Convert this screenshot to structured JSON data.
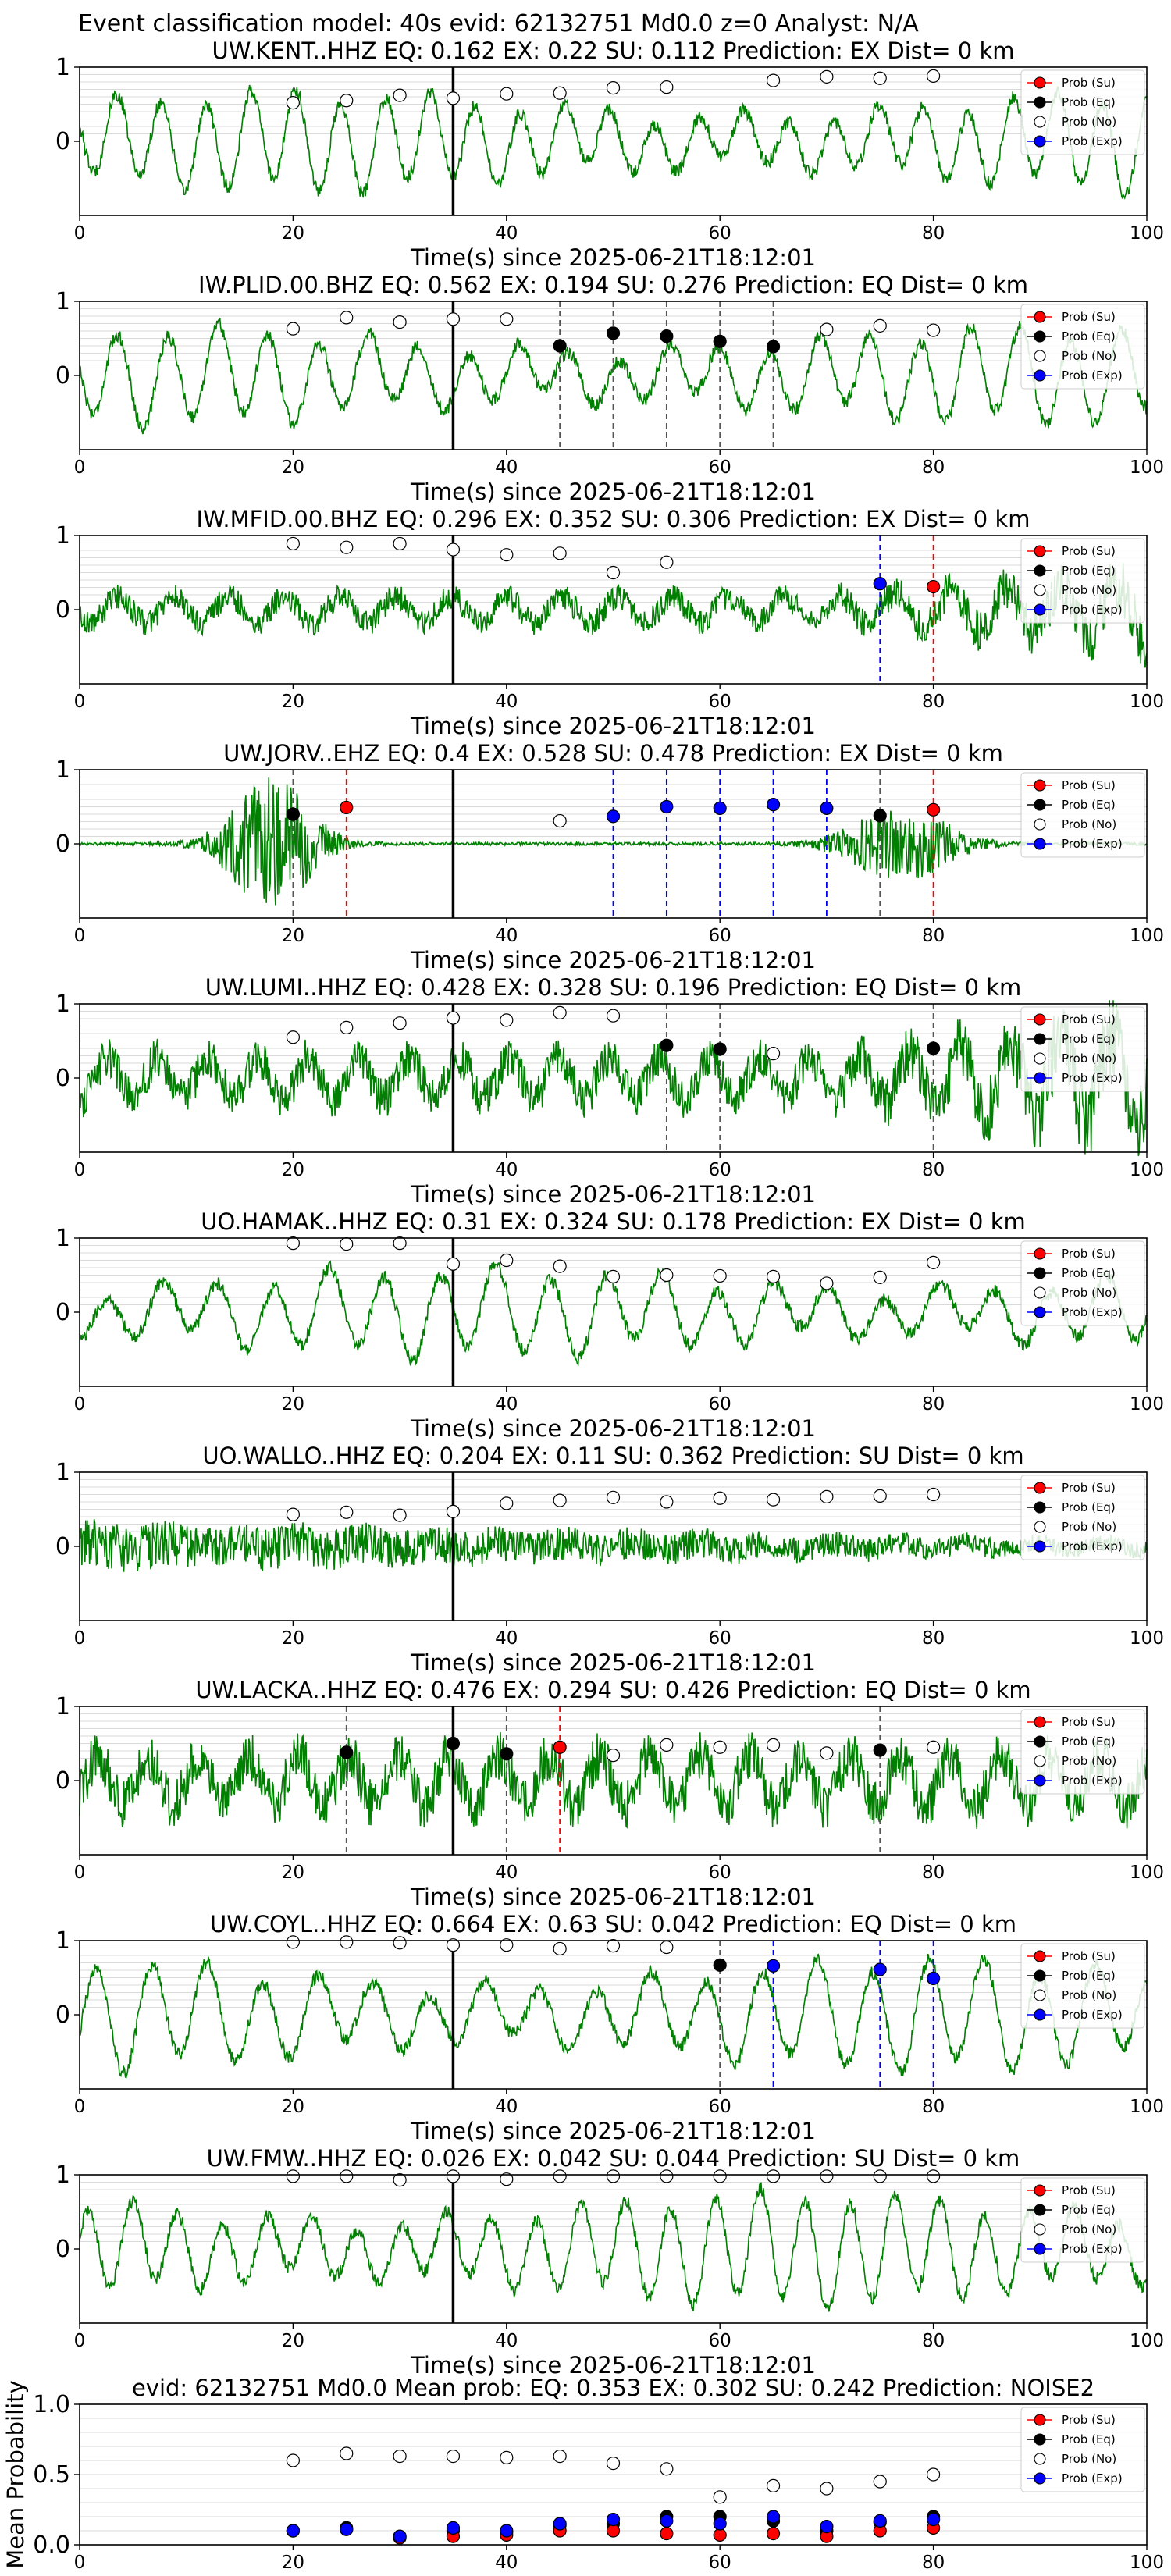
{
  "suptitle": "Event classification model: 40s evid: 62132751 Md0.0 z=0 Analyst: N/A",
  "legend": [
    "Prob (Su)",
    "Prob (Eq)",
    "Prob (No)",
    "Prob (Exp)"
  ],
  "colors": {
    "su": "#ff0000",
    "eq": "#000000",
    "no": "#ffffff",
    "exp": "#0000ff",
    "trace": "#008000",
    "pick": "#000000"
  },
  "xlabel": "Time(s) since 2025-06-21T18:12:01",
  "chart_data": [
    {
      "type": "line",
      "title": "UW.KENT..HHZ   EQ: 0.162  EX: 0.22  SU: 0.112   Prediction: EX    Dist= 0 km",
      "xlim": [
        0,
        100
      ],
      "ylim": [
        -1,
        1
      ],
      "yticks": [
        0,
        1
      ],
      "xticks": [
        0,
        20,
        40,
        60,
        80,
        100
      ],
      "pick_time": 35,
      "trace": {
        "style": "wave",
        "amp": 0.62
      },
      "markers": {
        "no": [
          [
            20,
            0.52
          ],
          [
            25,
            0.55
          ],
          [
            30,
            0.62
          ],
          [
            35,
            0.58
          ],
          [
            40,
            0.64
          ],
          [
            45,
            0.65
          ],
          [
            50,
            0.72
          ],
          [
            55,
            0.73
          ],
          [
            65,
            0.82
          ],
          [
            70,
            0.87
          ],
          [
            75,
            0.85
          ],
          [
            80,
            0.88
          ]
        ],
        "eq": [],
        "su": [],
        "exp": []
      },
      "vlines": []
    },
    {
      "type": "line",
      "title": "IW.PLID.00.BHZ   EQ: 0.562  EX: 0.194  SU: 0.276   Prediction: EQ    Dist= 0 km",
      "xlim": [
        0,
        100
      ],
      "ylim": [
        -1,
        1
      ],
      "yticks": [
        0,
        1
      ],
      "xticks": [
        0,
        20,
        40,
        60,
        80,
        100
      ],
      "pick_time": 35,
      "trace": {
        "style": "wave",
        "amp": 0.6
      },
      "markers": {
        "no": [
          [
            20,
            0.63
          ],
          [
            25,
            0.78
          ],
          [
            30,
            0.72
          ],
          [
            35,
            0.76
          ],
          [
            40,
            0.76
          ],
          [
            70,
            0.62
          ],
          [
            75,
            0.67
          ],
          [
            80,
            0.61
          ]
        ],
        "eq": [
          [
            45,
            0.4
          ],
          [
            50,
            0.57
          ],
          [
            55,
            0.53
          ],
          [
            60,
            0.46
          ],
          [
            65,
            0.39
          ]
        ],
        "su": [],
        "exp": []
      },
      "vlines": [
        [
          45,
          "eq"
        ],
        [
          50,
          "eq"
        ],
        [
          55,
          "eq"
        ],
        [
          60,
          "eq"
        ],
        [
          65,
          "eq"
        ]
      ]
    },
    {
      "type": "line",
      "title": "IW.MFID.00.BHZ   EQ: 0.296  EX: 0.352  SU: 0.306   Prediction: EX    Dist= 0 km",
      "xlim": [
        0,
        100
      ],
      "ylim": [
        -1,
        1
      ],
      "yticks": [
        0,
        1
      ],
      "xticks": [
        0,
        20,
        40,
        60,
        80,
        100
      ],
      "pick_time": 35,
      "trace": {
        "style": "noisy",
        "amp": 0.45
      },
      "markers": {
        "no": [
          [
            20,
            0.89
          ],
          [
            25,
            0.84
          ],
          [
            30,
            0.89
          ],
          [
            35,
            0.81
          ],
          [
            40,
            0.74
          ],
          [
            45,
            0.76
          ],
          [
            50,
            0.5
          ],
          [
            55,
            0.64
          ]
        ],
        "eq": [],
        "su": [
          [
            80,
            0.31
          ]
        ],
        "exp": [
          [
            75,
            0.35
          ]
        ]
      },
      "vlines": [
        [
          75,
          "exp"
        ],
        [
          80,
          "su"
        ]
      ]
    },
    {
      "type": "line",
      "title": "UW.JORV..EHZ   EQ: 0.4  EX: 0.528  SU: 0.478   Prediction: EX    Dist= 0 km",
      "xlim": [
        0,
        100
      ],
      "ylim": [
        -1,
        1
      ],
      "yticks": [
        0,
        1
      ],
      "xticks": [
        0,
        20,
        40,
        60,
        80,
        100
      ],
      "pick_time": 35,
      "trace": {
        "style": "bursts",
        "amp": 0.9
      },
      "markers": {
        "no": [
          [
            45,
            0.31
          ]
        ],
        "eq": [
          [
            20,
            0.4
          ],
          [
            75,
            0.38
          ]
        ],
        "su": [
          [
            25,
            0.49
          ],
          [
            80,
            0.46
          ]
        ],
        "exp": [
          [
            50,
            0.37
          ],
          [
            55,
            0.5
          ],
          [
            60,
            0.48
          ],
          [
            65,
            0.53
          ],
          [
            70,
            0.48
          ]
        ]
      },
      "vlines": [
        [
          20,
          "eq"
        ],
        [
          25,
          "su"
        ],
        [
          50,
          "exp"
        ],
        [
          55,
          "exp"
        ],
        [
          60,
          "exp"
        ],
        [
          65,
          "exp"
        ],
        [
          70,
          "exp"
        ],
        [
          75,
          "eq"
        ],
        [
          80,
          "su"
        ]
      ]
    },
    {
      "type": "line",
      "title": "UW.LUMI..HHZ   EQ: 0.428  EX: 0.328  SU: 0.196   Prediction: EQ    Dist= 0 km",
      "xlim": [
        0,
        100
      ],
      "ylim": [
        -1,
        1
      ],
      "yticks": [
        0,
        1
      ],
      "xticks": [
        0,
        20,
        40,
        60,
        80,
        100
      ],
      "pick_time": 35,
      "trace": {
        "style": "noisy",
        "amp": 0.7
      },
      "markers": {
        "no": [
          [
            20,
            0.55
          ],
          [
            25,
            0.68
          ],
          [
            30,
            0.74
          ],
          [
            35,
            0.81
          ],
          [
            40,
            0.78
          ],
          [
            45,
            0.88
          ],
          [
            50,
            0.84
          ],
          [
            65,
            0.33
          ]
        ],
        "eq": [
          [
            55,
            0.44
          ],
          [
            60,
            0.39
          ],
          [
            80,
            0.4
          ]
        ],
        "su": [],
        "exp": []
      },
      "vlines": [
        [
          55,
          "eq"
        ],
        [
          60,
          "eq"
        ],
        [
          80,
          "eq"
        ]
      ]
    },
    {
      "type": "line",
      "title": "UO.HAMAK..HHZ   EQ: 0.31  EX: 0.324  SU: 0.178   Prediction: EX    Dist= 0 km",
      "xlim": [
        0,
        100
      ],
      "ylim": [
        -1,
        1
      ],
      "yticks": [
        0,
        1
      ],
      "xticks": [
        0,
        20,
        40,
        60,
        80,
        100
      ],
      "pick_time": 35,
      "trace": {
        "style": "wave",
        "amp": 0.55
      },
      "markers": {
        "no": [
          [
            20,
            0.93
          ],
          [
            25,
            0.92
          ],
          [
            30,
            0.93
          ],
          [
            35,
            0.65
          ],
          [
            40,
            0.7
          ],
          [
            45,
            0.62
          ],
          [
            50,
            0.48
          ],
          [
            55,
            0.5
          ],
          [
            60,
            0.49
          ],
          [
            65,
            0.48
          ],
          [
            70,
            0.39
          ],
          [
            75,
            0.47
          ],
          [
            80,
            0.67
          ]
        ],
        "eq": [],
        "su": [],
        "exp": []
      },
      "vlines": []
    },
    {
      "type": "line",
      "title": "UO.WALLO..HHZ   EQ: 0.204  EX: 0.11  SU: 0.362   Prediction: SU    Dist= 0 km",
      "xlim": [
        0,
        100
      ],
      "ylim": [
        -1,
        1
      ],
      "yticks": [
        0,
        1
      ],
      "xticks": [
        0,
        20,
        40,
        60,
        80,
        100
      ],
      "pick_time": 35,
      "trace": {
        "style": "decay",
        "amp": 0.3
      },
      "markers": {
        "no": [
          [
            20,
            0.43
          ],
          [
            25,
            0.46
          ],
          [
            30,
            0.42
          ],
          [
            35,
            0.47
          ],
          [
            40,
            0.58
          ],
          [
            45,
            0.62
          ],
          [
            50,
            0.66
          ],
          [
            55,
            0.6
          ],
          [
            60,
            0.65
          ],
          [
            65,
            0.63
          ],
          [
            70,
            0.67
          ],
          [
            75,
            0.68
          ],
          [
            80,
            0.7
          ]
        ],
        "eq": [],
        "su": [],
        "exp": []
      },
      "vlines": []
    },
    {
      "type": "line",
      "title": "UW.LACKA..HHZ   EQ: 0.476  EX: 0.294  SU: 0.426   Prediction: EQ    Dist= 0 km",
      "xlim": [
        0,
        100
      ],
      "ylim": [
        -1,
        1
      ],
      "yticks": [
        0,
        1
      ],
      "xticks": [
        0,
        20,
        40,
        60,
        80,
        100
      ],
      "pick_time": 35,
      "trace": {
        "style": "noisy",
        "amp": 0.6
      },
      "markers": {
        "no": [
          [
            50,
            0.34
          ],
          [
            55,
            0.48
          ],
          [
            60,
            0.45
          ],
          [
            65,
            0.48
          ],
          [
            70,
            0.37
          ],
          [
            80,
            0.45
          ]
        ],
        "eq": [
          [
            25,
            0.38
          ],
          [
            35,
            0.5
          ],
          [
            40,
            0.36
          ],
          [
            75,
            0.41
          ]
        ],
        "su": [
          [
            45,
            0.45
          ]
        ],
        "exp": []
      },
      "vlines": [
        [
          25,
          "eq"
        ],
        [
          40,
          "eq"
        ],
        [
          45,
          "su"
        ],
        [
          75,
          "eq"
        ]
      ]
    },
    {
      "type": "line",
      "title": "UW.COYL..HHZ   EQ: 0.664  EX: 0.63  SU: 0.042   Prediction: EQ    Dist= 0 km",
      "xlim": [
        0,
        100
      ],
      "ylim": [
        -1,
        1
      ],
      "yticks": [
        0,
        1
      ],
      "xticks": [
        0,
        20,
        40,
        60,
        80,
        100
      ],
      "pick_time": 35,
      "trace": {
        "style": "wave",
        "amp": 0.7
      },
      "markers": {
        "no": [
          [
            20,
            0.98
          ],
          [
            25,
            0.98
          ],
          [
            30,
            0.97
          ],
          [
            35,
            0.94
          ],
          [
            40,
            0.94
          ],
          [
            45,
            0.89
          ],
          [
            50,
            0.93
          ],
          [
            55,
            0.91
          ]
        ],
        "eq": [
          [
            60,
            0.67
          ]
        ],
        "su": [],
        "exp": [
          [
            65,
            0.66
          ],
          [
            75,
            0.61
          ],
          [
            80,
            0.49
          ]
        ]
      },
      "vlines": [
        [
          60,
          "eq"
        ],
        [
          65,
          "exp"
        ],
        [
          75,
          "exp"
        ],
        [
          80,
          "exp"
        ]
      ]
    },
    {
      "type": "line",
      "title": "UW.FMW..HHZ   EQ: 0.026  EX: 0.042  SU: 0.044   Prediction: SU    Dist= 0 km",
      "xlim": [
        0,
        100
      ],
      "ylim": [
        -1,
        1
      ],
      "yticks": [
        0,
        1
      ],
      "xticks": [
        0,
        20,
        40,
        60,
        80,
        100
      ],
      "pick_time": 35,
      "trace": {
        "style": "wave",
        "amp": 0.7
      },
      "markers": {
        "no": [
          [
            20,
            0.98
          ],
          [
            25,
            0.98
          ],
          [
            30,
            0.93
          ],
          [
            35,
            0.98
          ],
          [
            40,
            0.94
          ],
          [
            45,
            0.98
          ],
          [
            50,
            0.98
          ],
          [
            55,
            0.98
          ],
          [
            60,
            0.98
          ],
          [
            65,
            0.98
          ],
          [
            70,
            0.98
          ],
          [
            75,
            0.98
          ],
          [
            80,
            0.98
          ]
        ],
        "eq": [],
        "su": [],
        "exp": []
      },
      "vlines": []
    },
    {
      "type": "scatter",
      "title": "evid: 62132751   Md0.0    Mean prob:   EQ: 0.353  EX: 0.302  SU: 0.242   Prediction: NOISE2",
      "ylabel": "Mean Probability",
      "xlim": [
        0,
        100
      ],
      "ylim": [
        0,
        1
      ],
      "yticks": [
        0.0,
        0.5,
        1.0
      ],
      "ytick_labels": [
        "0.0",
        "0.5",
        "1.0"
      ],
      "xticks": [
        0,
        20,
        40,
        60,
        80,
        100
      ],
      "markers": {
        "no": [
          [
            20,
            0.6
          ],
          [
            25,
            0.65
          ],
          [
            30,
            0.63
          ],
          [
            35,
            0.63
          ],
          [
            40,
            0.62
          ],
          [
            45,
            0.63
          ],
          [
            50,
            0.58
          ],
          [
            55,
            0.54
          ],
          [
            60,
            0.34
          ],
          [
            65,
            0.42
          ],
          [
            70,
            0.4
          ],
          [
            75,
            0.45
          ],
          [
            80,
            0.5
          ]
        ],
        "eq": [
          [
            20,
            0.1
          ],
          [
            25,
            0.12
          ],
          [
            30,
            0.06
          ],
          [
            35,
            0.1
          ],
          [
            40,
            0.09
          ],
          [
            45,
            0.14
          ],
          [
            50,
            0.15
          ],
          [
            55,
            0.2
          ],
          [
            60,
            0.2
          ],
          [
            65,
            0.17
          ],
          [
            70,
            0.1
          ],
          [
            75,
            0.16
          ],
          [
            80,
            0.2
          ]
        ],
        "su": [
          [
            20,
            0.1
          ],
          [
            25,
            0.11
          ],
          [
            30,
            0.05
          ],
          [
            35,
            0.06
          ],
          [
            40,
            0.07
          ],
          [
            45,
            0.1
          ],
          [
            50,
            0.1
          ],
          [
            55,
            0.08
          ],
          [
            60,
            0.07
          ],
          [
            65,
            0.08
          ],
          [
            70,
            0.06
          ],
          [
            75,
            0.1
          ],
          [
            80,
            0.12
          ]
        ],
        "exp": [
          [
            20,
            0.1
          ],
          [
            25,
            0.11
          ],
          [
            30,
            0.06
          ],
          [
            35,
            0.12
          ],
          [
            40,
            0.1
          ],
          [
            45,
            0.15
          ],
          [
            50,
            0.18
          ],
          [
            55,
            0.17
          ],
          [
            60,
            0.15
          ],
          [
            65,
            0.2
          ],
          [
            70,
            0.13
          ],
          [
            75,
            0.17
          ],
          [
            80,
            0.18
          ]
        ]
      }
    }
  ]
}
